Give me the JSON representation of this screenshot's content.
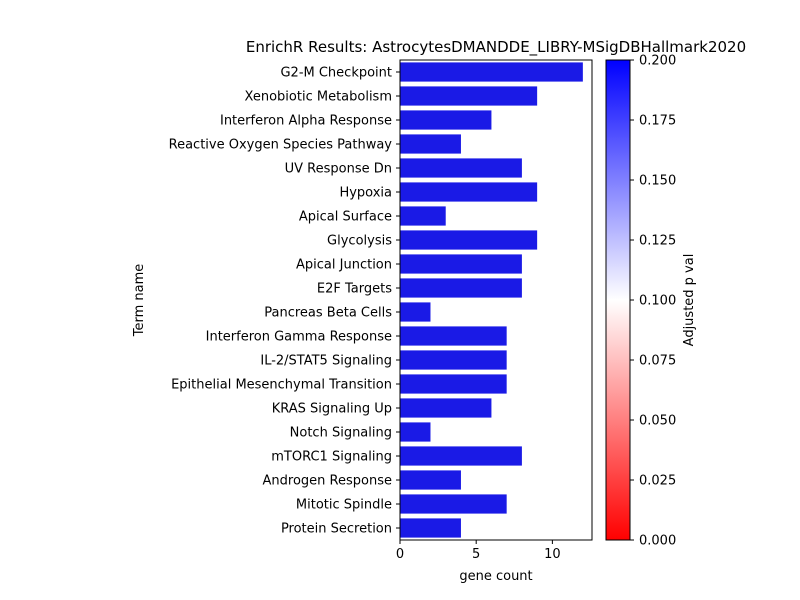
{
  "chart_data": [
    {
      "type": "bar",
      "orientation": "horizontal",
      "title": "EnrichR Results: AstrocytesDMANDDE_LIBRY-MSigDBHallmark2020",
      "xlabel": "gene count",
      "ylabel": "Term name",
      "xlim": [
        0,
        12.6
      ],
      "xticks": [
        0,
        5,
        10
      ],
      "grid": false,
      "bar_color": "#1a1ae6",
      "categories": [
        "G2-M Checkpoint",
        "Xenobiotic Metabolism",
        "Interferon Alpha Response",
        "Reactive Oxygen Species Pathway",
        "UV Response Dn",
        "Hypoxia",
        "Apical Surface",
        "Glycolysis",
        "Apical Junction",
        "E2F Targets",
        "Pancreas Beta Cells",
        "Interferon Gamma Response",
        "IL-2/STAT5 Signaling",
        "Epithelial Mesenchymal Transition",
        "KRAS Signaling Up",
        "Notch Signaling",
        "mTORC1 Signaling",
        "Androgen Response",
        "Mitotic Spindle",
        "Protein Secretion"
      ],
      "values": [
        12,
        9,
        6,
        4,
        8,
        9,
        3,
        9,
        8,
        8,
        2,
        7,
        7,
        7,
        6,
        2,
        8,
        4,
        7,
        4
      ]
    },
    {
      "type": "colorbar",
      "label": "Adjusted p val",
      "range": [
        0,
        0.2
      ],
      "ticks": [
        "0.000",
        "0.025",
        "0.050",
        "0.075",
        "0.100",
        "0.125",
        "0.150",
        "0.175",
        "0.200"
      ],
      "colors": [
        "#ff0000",
        "#ffffff",
        "#0000ff"
      ]
    }
  ]
}
